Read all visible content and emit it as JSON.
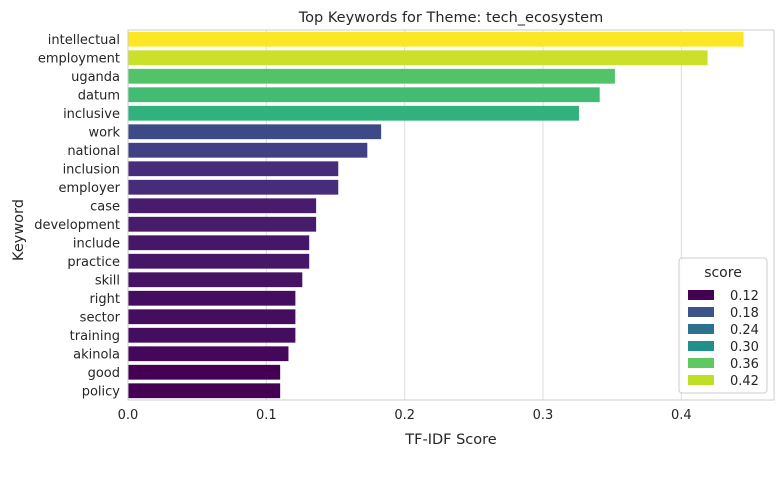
{
  "chart_data": {
    "type": "bar",
    "orientation": "horizontal",
    "title": "Top Keywords for Theme: tech_ecosystem",
    "xlabel": "TF-IDF Score",
    "ylabel": "Keyword",
    "xlim": [
      0,
      0.467
    ],
    "xticks": [
      0.0,
      0.1,
      0.2,
      0.3,
      0.4
    ],
    "xtick_labels": [
      "0.0",
      "0.1",
      "0.2",
      "0.3",
      "0.4"
    ],
    "grid": "vertical",
    "categories": [
      "intellectual",
      "employment",
      "uganda",
      "datum",
      "inclusive",
      "work",
      "national",
      "inclusion",
      "employer",
      "case",
      "development",
      "include",
      "practice",
      "skill",
      "right",
      "sector",
      "training",
      "akinola",
      "good",
      "policy"
    ],
    "values": [
      0.445,
      0.419,
      0.352,
      0.341,
      0.326,
      0.183,
      0.173,
      0.152,
      0.152,
      0.136,
      0.136,
      0.131,
      0.131,
      0.126,
      0.121,
      0.121,
      0.121,
      0.116,
      0.11,
      0.11
    ],
    "colormap": "viridis",
    "legend": {
      "title": "score",
      "placement": "lower-right",
      "entries": [
        {
          "label": "0.12",
          "color": "#440154"
        },
        {
          "label": "0.18",
          "color": "#3b528b"
        },
        {
          "label": "0.24",
          "color": "#2c728e"
        },
        {
          "label": "0.30",
          "color": "#21908d"
        },
        {
          "label": "0.36",
          "color": "#5ec962"
        },
        {
          "label": "0.42",
          "color": "#bddf26"
        }
      ]
    }
  }
}
